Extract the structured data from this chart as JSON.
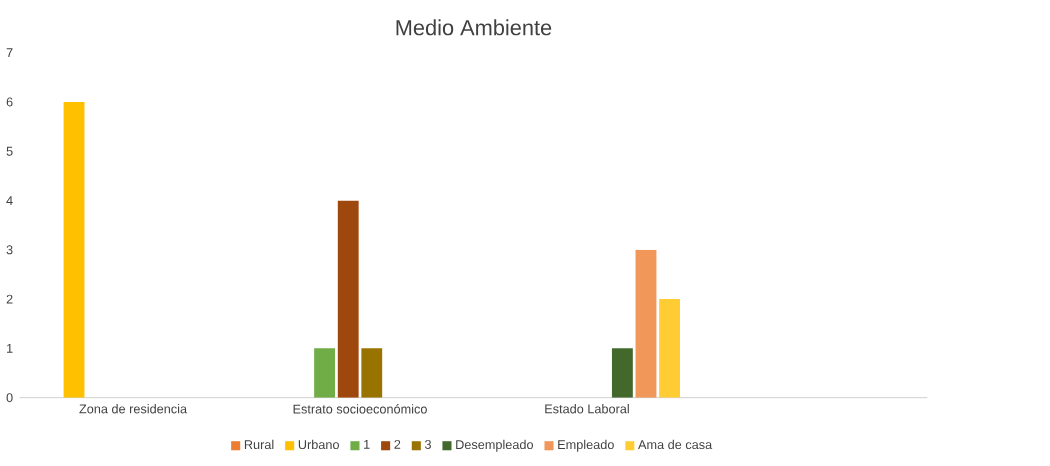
{
  "chart_data": {
    "type": "bar",
    "title": "Medio Ambiente",
    "categories": [
      "Zona de residencia",
      "Estrato socioeconómico",
      "Estado Laboral",
      null
    ],
    "series": [
      {
        "name": "Rural",
        "color": "#ed7d31",
        "values": [
          null,
          null,
          null,
          null
        ]
      },
      {
        "name": "Urbano",
        "color": "#ffc000",
        "values": [
          6,
          null,
          null,
          null
        ]
      },
      {
        "name": "1",
        "color": "#70ad47",
        "values": [
          null,
          1,
          null,
          null
        ]
      },
      {
        "name": "2",
        "color": "#9e480e",
        "values": [
          null,
          4,
          null,
          null
        ]
      },
      {
        "name": "3",
        "color": "#997300",
        "values": [
          null,
          1,
          null,
          null
        ]
      },
      {
        "name": "Desempleado",
        "color": "#43682b",
        "values": [
          null,
          null,
          1,
          null
        ]
      },
      {
        "name": "Empleado",
        "color": "#f1975a",
        "values": [
          null,
          null,
          3,
          null
        ]
      },
      {
        "name": "Ama de casa",
        "color": "#ffcd33",
        "values": [
          null,
          null,
          2,
          null
        ]
      }
    ],
    "ylim": [
      0,
      7
    ],
    "yticks": [
      0,
      1,
      2,
      3,
      4,
      5,
      6,
      7
    ],
    "legend": "bottom"
  }
}
